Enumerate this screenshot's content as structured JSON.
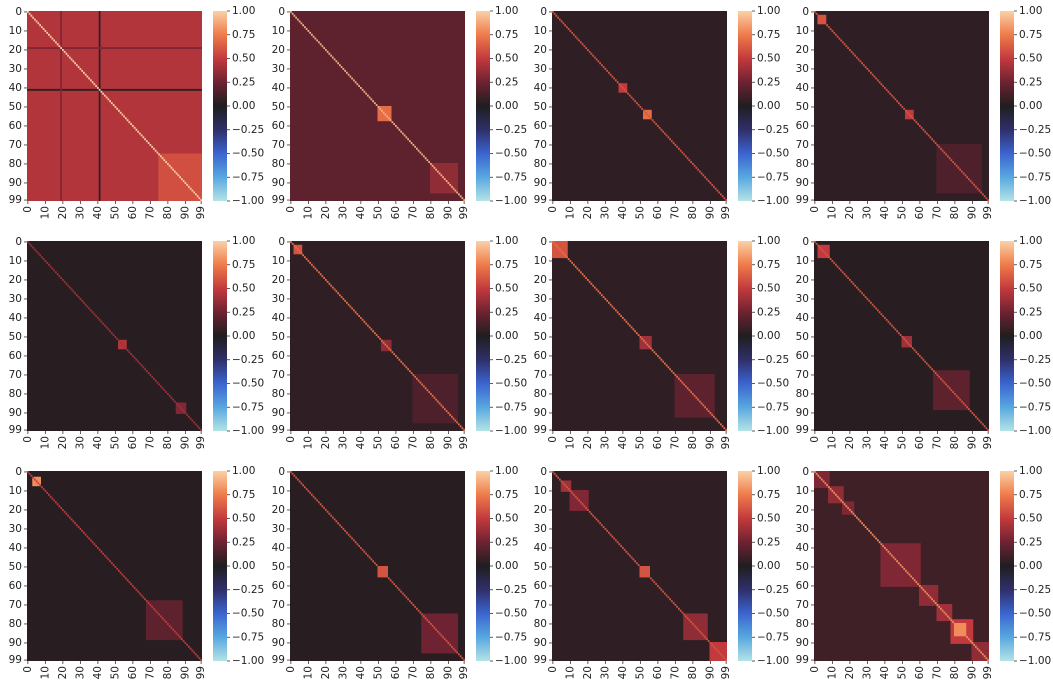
{
  "axis": {
    "lim": [
      0,
      100
    ],
    "ticks": [
      0,
      10,
      20,
      30,
      40,
      50,
      60,
      70,
      80,
      90,
      99
    ]
  },
  "colorbar": {
    "lim": [
      -1,
      1
    ],
    "ticks": [
      {
        "value": 1,
        "label": "1.00"
      },
      {
        "value": 0.75,
        "label": "0.75"
      },
      {
        "value": 0.5,
        "label": "0.50"
      },
      {
        "value": 0.25,
        "label": "0.25"
      },
      {
        "value": 0,
        "label": "0.00"
      },
      {
        "value": -0.25,
        "label": "−0.25"
      },
      {
        "value": -0.5,
        "label": "−0.50"
      },
      {
        "value": -0.75,
        "label": "−0.75"
      },
      {
        "value": -1,
        "label": "−1.00"
      }
    ],
    "colormap": [
      {
        "value": -1,
        "color": "#b5e3e6"
      },
      {
        "value": -0.75,
        "color": "#57a8e0"
      },
      {
        "value": -0.5,
        "color": "#3b64cf"
      },
      {
        "value": -0.25,
        "color": "#2f2f6a"
      },
      {
        "value": 0,
        "color": "#1f1e20"
      },
      {
        "value": 0.25,
        "color": "#6e2232"
      },
      {
        "value": 0.5,
        "color": "#c23a3d"
      },
      {
        "value": 0.75,
        "color": "#ef7b4a"
      },
      {
        "value": 1,
        "color": "#fbd1a6"
      }
    ]
  },
  "chart_data": [
    {
      "type": "heatmap",
      "background": 0.45,
      "diagonal": 1,
      "stripes": [
        {
          "index": 41,
          "value": 0.05
        },
        {
          "index": 19,
          "value": 0.3
        }
      ],
      "blocks": [
        {
          "range": [
            75,
            99
          ],
          "value": 0.58
        }
      ]
    },
    {
      "type": "heatmap",
      "background": 0.2,
      "diagonal": 0.9,
      "stripes": [],
      "blocks": [
        {
          "range": [
            50,
            57
          ],
          "value": 0.7
        },
        {
          "range": [
            80,
            95
          ],
          "value": 0.35
        }
      ]
    },
    {
      "type": "heatmap",
      "background": 0.05,
      "diagonal": 0.6,
      "stripes": [],
      "blocks": [
        {
          "range": [
            38,
            42
          ],
          "value": 0.5
        },
        {
          "range": [
            52,
            56
          ],
          "value": 0.7
        }
      ]
    },
    {
      "type": "heatmap",
      "background": 0.05,
      "diagonal": 0.6,
      "stripes": [],
      "blocks": [
        {
          "range": [
            70,
            95
          ],
          "value": 0.15
        },
        {
          "range": [
            2,
            6
          ],
          "value": 0.6
        },
        {
          "range": [
            52,
            56
          ],
          "value": 0.5
        }
      ]
    },
    {
      "type": "heatmap",
      "background": 0.03,
      "diagonal": 0.4,
      "stripes": [],
      "blocks": [
        {
          "range": [
            52,
            56
          ],
          "value": 0.45
        },
        {
          "range": [
            85,
            90
          ],
          "value": 0.3
        }
      ]
    },
    {
      "type": "heatmap",
      "background": 0.05,
      "diagonal": 0.7,
      "stripes": [],
      "blocks": [
        {
          "range": [
            70,
            95
          ],
          "value": 0.15
        },
        {
          "range": [
            2,
            6
          ],
          "value": 0.6
        },
        {
          "range": [
            52,
            57
          ],
          "value": 0.35
        }
      ]
    },
    {
      "type": "heatmap",
      "background": 0.05,
      "diagonal": 0.7,
      "stripes": [],
      "blocks": [
        {
          "range": [
            70,
            92
          ],
          "value": 0.2
        },
        {
          "range": [
            0,
            8
          ],
          "value": 0.6
        },
        {
          "range": [
            50,
            56
          ],
          "value": 0.4
        }
      ]
    },
    {
      "type": "heatmap",
      "background": 0.03,
      "diagonal": 0.6,
      "stripes": [],
      "blocks": [
        {
          "range": [
            68,
            88
          ],
          "value": 0.2
        },
        {
          "range": [
            2,
            8
          ],
          "value": 0.5
        },
        {
          "range": [
            50,
            55
          ],
          "value": 0.4
        }
      ]
    },
    {
      "type": "heatmap",
      "background": 0.03,
      "diagonal": 0.5,
      "stripes": [],
      "blocks": [
        {
          "range": [
            68,
            88
          ],
          "value": 0.2
        },
        {
          "range": [
            3,
            7
          ],
          "value": 0.8
        }
      ]
    },
    {
      "type": "heatmap",
      "background": 0.03,
      "diagonal": 0.6,
      "stripes": [],
      "blocks": [
        {
          "range": [
            75,
            95
          ],
          "value": 0.25
        },
        {
          "range": [
            50,
            55
          ],
          "value": 0.6
        }
      ]
    },
    {
      "type": "heatmap",
      "background": 0.05,
      "diagonal": 0.6,
      "stripes": [],
      "blocks": [
        {
          "range": [
            5,
            10
          ],
          "value": 0.4
        },
        {
          "range": [
            10,
            20
          ],
          "value": 0.3
        },
        {
          "range": [
            50,
            55
          ],
          "value": 0.6
        },
        {
          "range": [
            75,
            88
          ],
          "value": 0.35
        },
        {
          "range": [
            90,
            99
          ],
          "value": 0.5
        }
      ]
    },
    {
      "type": "heatmap",
      "background": 0.1,
      "diagonal": 0.8,
      "stripes": [],
      "blocks": [
        {
          "range": [
            0,
            8
          ],
          "value": 0.3
        },
        {
          "range": [
            8,
            16
          ],
          "value": 0.35
        },
        {
          "range": [
            16,
            22
          ],
          "value": 0.3
        },
        {
          "range": [
            38,
            60
          ],
          "value": 0.3
        },
        {
          "range": [
            60,
            70
          ],
          "value": 0.35
        },
        {
          "range": [
            70,
            78
          ],
          "value": 0.4
        },
        {
          "range": [
            78,
            90
          ],
          "value": 0.5
        },
        {
          "range": [
            80,
            86
          ],
          "value": 0.8
        },
        {
          "range": [
            90,
            99
          ],
          "value": 0.35
        }
      ]
    }
  ]
}
